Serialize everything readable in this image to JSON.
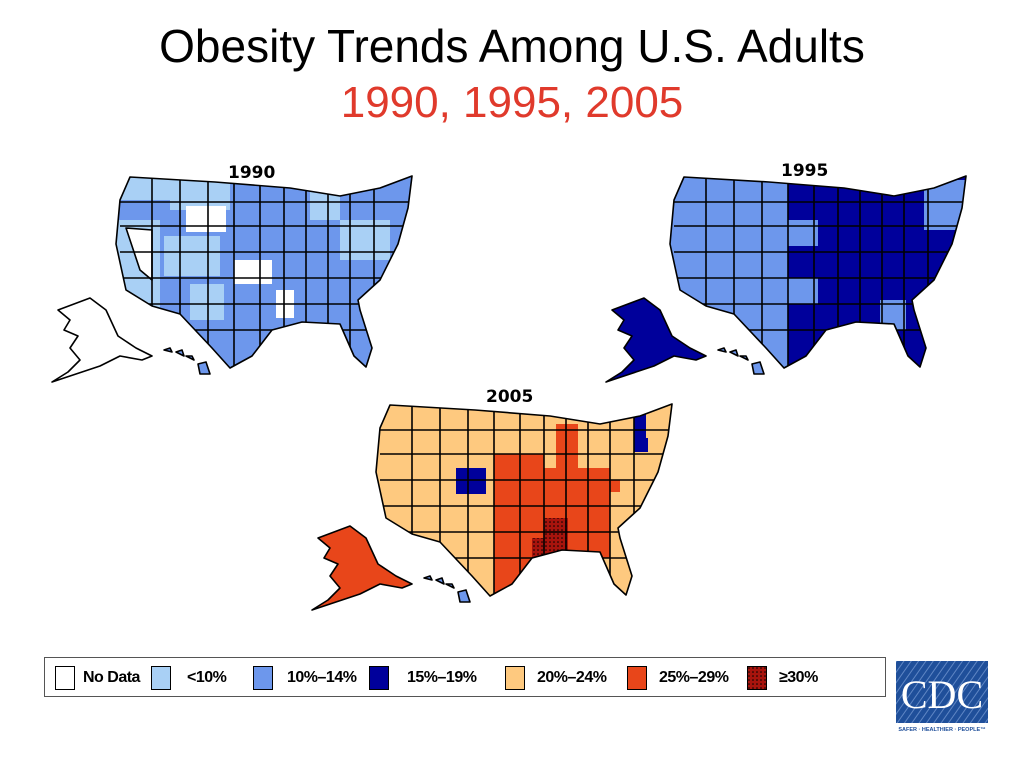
{
  "title": "Obesity Trends Among U.S. Adults",
  "subtitle": "1990, 1995, 2005",
  "colors": {
    "title": "#000000",
    "subtitle": "#e03a2c",
    "no_data": "#ffffff",
    "lt10": "#a9d0f5",
    "p10_14": "#6d97ec",
    "p15_19": "#00009b",
    "p20_24": "#fec97f",
    "p25_29": "#e8461a",
    "ge30": "#a8140d",
    "logo": "#1f4f9a"
  },
  "maps": [
    {
      "year": "1990",
      "dominant_category": "10%–14%"
    },
    {
      "year": "1995",
      "dominant_category": "15%–19%"
    },
    {
      "year": "2005",
      "dominant_category": "25%–29%"
    }
  ],
  "legend": [
    {
      "label": "No Data",
      "color": "#ffffff"
    },
    {
      "label": "<10%",
      "color": "#a9d0f5"
    },
    {
      "label": "10%–14%",
      "color": "#6d97ec"
    },
    {
      "label": "15%–19%",
      "color": "#00009b"
    },
    {
      "label": "20%–24%",
      "color": "#fec97f"
    },
    {
      "label": "25%–29%",
      "color": "#e8461a"
    },
    {
      "label": "≥30%",
      "color": "#a8140d",
      "pattern": "dotted"
    }
  ],
  "logo": {
    "text": "CDC",
    "tagline": "SAFER · HEALTHIER · PEOPLE™"
  }
}
